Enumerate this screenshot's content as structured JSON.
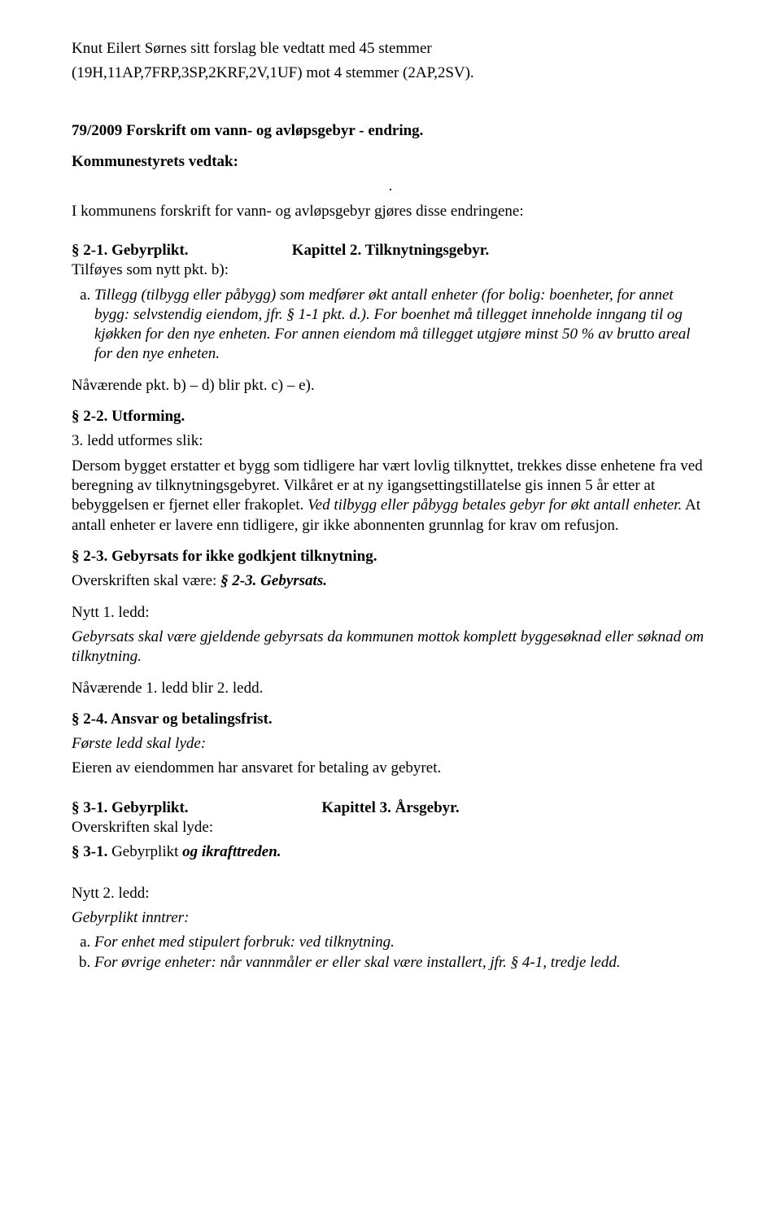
{
  "para1_line1": "Knut Eilert Sørnes sitt forslag ble vedtatt med 45 stemmer",
  "para1_line2": "(19H,11AP,7FRP,3SP,2KRF,2V,1UF) mot 4 stemmer (2AP,2SV).",
  "heading_forslag": "79/2009 Forskrift om vann- og avløpsgebyr - endring.",
  "kommunestyrets": "Kommunestyrets vedtak:",
  "dot": ".",
  "intro_line": "I kommunens forskrift for vann- og avløpsgebyr gjøres disse endringene:",
  "kap2_title": "Kapittel 2. Tilknytningsgebyr.",
  "s2_1": "§ 2-1. Gebyrplikt.",
  "tilfoyes": "Tilføyes som nytt pkt. b):",
  "list_a_item": "Tillegg (tilbygg eller påbygg) som medfører økt antall enheter (for bolig: boenheter, for annet bygg: selvstendig eiendom, jfr. § 1-1 pkt. d.). For boenhet må tillegget inneholde inngang til og kjøkken for den nye enheten. For annen eiendom må tillegget utgjøre minst 50 % av brutto areal for den nye enheten.",
  "navarende_pkt": "Nåværende pkt. b) – d) blir pkt. c) – e).",
  "s2_2": "§ 2-2. Utforming.",
  "ledd3_utformes": "3. ledd utformes slik:",
  "s2_2_body_plain1": "Dersom bygget erstatter et bygg som tidligere har vært lovlig tilknyttet, trekkes disse enhetene fra ved beregning av tilknytningsgebyret. Vilkåret er at ny igangsettingstillatelse gis innen 5 år etter at bebyggelsen er fjernet eller frakoplet. ",
  "s2_2_body_italic": "Ved tilbygg eller påbygg betales gebyr for økt antall enheter.",
  "s2_2_body_plain2": " At antall enheter er lavere enn tidligere, gir ikke abonnenten grunnlag for krav om refusjon.",
  "s2_3": "§ 2-3. Gebyrsats for ikke godkjent tilknytning.",
  "s2_3_line2_a": "Overskriften skal være: ",
  "s2_3_line2_b": "§ 2-3. Gebyrsats.",
  "nytt1ledd": "Nytt 1. ledd:",
  "s2_3_body": "Gebyrsats skal være gjeldende gebyrsats da kommunen mottok komplett byggesøknad eller søknad om tilknytning.",
  "navarende_1ledd": "Nåværende 1. ledd blir 2. ledd.",
  "s2_4": "§ 2-4. Ansvar og betalingsfrist.",
  "forste_ledd": "Første ledd skal lyde:",
  "s2_4_body": "Eieren av eiendommen har ansvaret for betaling av gebyret.",
  "kap3_title": "Kapittel 3. Årsgebyr.",
  "s3_1": "§ 3-1. Gebyrplikt.",
  "overskriften": "Overskriften skal lyde:",
  "s3_1_b_lead": "§ 3-1.",
  "s3_1_b_mid": " Gebyrplikt ",
  "s3_1_b_tail": "og ikrafttreden.",
  "nytt2ledd": "Nytt 2. ledd:",
  "gebyrplikt_inntrer": "Gebyrplikt inntrer:",
  "nytt2_a": "For enhet med stipulert forbruk: ved tilknytning.",
  "nytt2_b": "For øvrige enheter: når vannmåler er eller skal være installert, jfr. § 4-1, tredje ledd."
}
